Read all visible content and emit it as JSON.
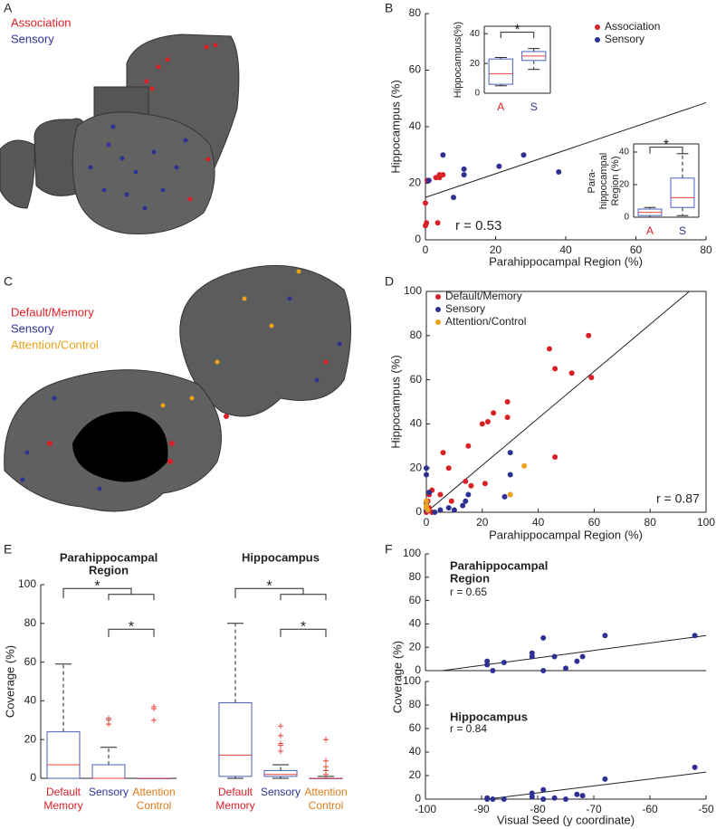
{
  "figure": {
    "panel_labels": [
      "A",
      "B",
      "C",
      "D",
      "E",
      "F"
    ],
    "brain_a": {
      "legend": [
        "Association",
        "Sensory"
      ],
      "colors": [
        "#d92027",
        "#2e3192"
      ]
    },
    "brain_c": {
      "legend": [
        "Default/Memory",
        "Sensory",
        "Attention/Control"
      ],
      "colors": [
        "#d92027",
        "#2e3192",
        "#e9a21c"
      ]
    }
  },
  "chart_data": [
    {
      "type": "scatter",
      "xlabel": "Parahippocampal Region (%)",
      "ylabel": "Hippocampus (%)",
      "xlim": [
        0,
        80
      ],
      "xticks": [
        0,
        20,
        40,
        60,
        80
      ],
      "ylim": [
        0,
        80
      ],
      "yticks": [
        0,
        20,
        40,
        60,
        80
      ],
      "annotation": "r = 0.53",
      "legend": "upper right",
      "fit": {
        "x": [
          0,
          80
        ],
        "y": [
          15,
          48.5
        ]
      },
      "series": [
        {
          "name": "Association",
          "color": "#d92027",
          "x": [
            0,
            0,
            0.3,
            3,
            4,
            5,
            4,
            3.5,
            0.5
          ],
          "y": [
            13,
            5,
            6,
            22,
            23,
            23,
            22,
            6,
            21
          ]
        },
        {
          "name": "Sensory",
          "color": "#2e3192",
          "x": [
            1,
            5,
            8,
            11,
            11,
            21,
            28,
            38
          ],
          "y": [
            21,
            30,
            15,
            25,
            23,
            26,
            30,
            24
          ]
        }
      ]
    },
    {
      "type": "box",
      "ylabel": [
        "Hippocampus(%)"
      ],
      "categories": [
        [
          "A"
        ],
        [
          "S"
        ]
      ],
      "category_colors": [
        "#d92027",
        "#2e3192"
      ],
      "ylim": [
        0,
        45
      ],
      "yticks": [
        0,
        20,
        40
      ],
      "box_color": "#4a5fc1",
      "median_color": "#e8443a",
      "annotations": [
        "*"
      ],
      "boxes": [
        {
          "min": 5,
          "q1": 6,
          "median": 13,
          "q3": 23,
          "max": 24,
          "outliers": []
        },
        {
          "min": 16,
          "q1": 22,
          "median": 25,
          "q3": 28,
          "max": 30,
          "outliers": []
        }
      ]
    },
    {
      "type": "box",
      "ylabel": [
        "Para-",
        "hippocampal",
        "Region (%)"
      ],
      "categories": [
        [
          "A"
        ],
        [
          "S"
        ]
      ],
      "category_colors": [
        "#d92027",
        "#2e3192"
      ],
      "ylim": [
        0,
        45
      ],
      "yticks": [
        0,
        20,
        40
      ],
      "box_color": "#4a5fc1",
      "median_color": "#e8443a",
      "annotations": [
        "*"
      ],
      "boxes": [
        {
          "min": 0,
          "q1": 1,
          "median": 3,
          "q3": 5,
          "max": 6,
          "outliers": []
        },
        {
          "min": 1,
          "q1": 6,
          "median": 12,
          "q3": 24,
          "max": 39,
          "outliers": []
        }
      ]
    },
    {
      "type": "scatter",
      "xlabel": "Parahippocampal Region (%)",
      "ylabel": "Hippocampus (%)",
      "xlim": [
        0,
        100
      ],
      "xticks": [
        0,
        20,
        40,
        60,
        80,
        100
      ],
      "ylim": [
        0,
        100
      ],
      "yticks": [
        0,
        20,
        40,
        60,
        80,
        100
      ],
      "annotation": "r = 0.87",
      "legend": "upper left",
      "fit": {
        "x": [
          0,
          94
        ],
        "y": [
          0,
          100
        ]
      },
      "series": [
        {
          "name": "Default/Memory",
          "color": "#d92027",
          "x": [
            58,
            59,
            44,
            46,
            52,
            46,
            29,
            29,
            24,
            22,
            20,
            15,
            6,
            8,
            5,
            9,
            14,
            16,
            21,
            2,
            1,
            0.5,
            1,
            2,
            0
          ],
          "y": [
            80,
            61,
            74,
            65,
            63,
            25,
            50,
            43,
            45,
            41,
            40,
            30,
            27,
            20,
            8,
            5,
            14,
            12,
            13,
            10,
            8,
            5,
            2,
            0,
            0
          ]
        },
        {
          "name": "Sensory",
          "color": "#2e3192",
          "x": [
            30,
            30,
            28,
            14,
            15,
            13,
            8,
            5,
            0,
            0,
            1,
            0,
            0,
            3,
            10
          ],
          "y": [
            27,
            17,
            7,
            5,
            8,
            3,
            2,
            1,
            20,
            17,
            9,
            4,
            1,
            0,
            1
          ]
        },
        {
          "name": "Attention/Control",
          "color": "#e9a21c",
          "x": [
            35,
            30,
            0,
            0,
            0.5,
            0
          ],
          "y": [
            21,
            8,
            5,
            3,
            1,
            2
          ]
        }
      ]
    },
    {
      "type": "box",
      "title": [
        "Parahippocampal",
        "Region"
      ],
      "ylabel": [
        "Coverage (%)"
      ],
      "categories": [
        [
          "Default",
          "Memory"
        ],
        [
          "Sensory"
        ],
        [
          "Attention",
          "Control"
        ]
      ],
      "category_colors": [
        "#d92027",
        "#2e3192",
        "#e07b1c"
      ],
      "ylim": [
        0,
        100
      ],
      "yticks": [
        0,
        20,
        40,
        60,
        80,
        100
      ],
      "box_color": "#4a5fc1",
      "median_color": "#e8443a",
      "annotations": [
        "*",
        "*"
      ],
      "boxes": [
        {
          "min": 0,
          "q1": 0,
          "median": 7,
          "q3": 24,
          "max": 59,
          "outliers": []
        },
        {
          "min": 0,
          "q1": 0,
          "median": 0,
          "q3": 7,
          "max": 16,
          "outliers": [
            28,
            30,
            31
          ]
        },
        {
          "min": 0,
          "q1": 0,
          "median": 0,
          "q3": 0,
          "max": 0,
          "outliers": [
            30,
            36,
            37
          ]
        }
      ]
    },
    {
      "type": "box",
      "title": [
        "Hippocampus"
      ],
      "categories": [
        [
          "Default",
          "Memory"
        ],
        [
          "Sensory"
        ],
        [
          "Attention",
          "Control"
        ]
      ],
      "category_colors": [
        "#d92027",
        "#2e3192",
        "#e07b1c"
      ],
      "ylim": [
        0,
        100
      ],
      "box_color": "#4a5fc1",
      "median_color": "#e8443a",
      "annotations": [
        "*",
        "*"
      ],
      "boxes": [
        {
          "min": 0,
          "q1": 1,
          "median": 12,
          "q3": 39,
          "max": 80,
          "outliers": []
        },
        {
          "min": 0,
          "q1": 1,
          "median": 2,
          "q3": 4,
          "max": 7,
          "outliers": [
            14,
            17,
            18,
            22,
            27
          ]
        },
        {
          "min": 0,
          "q1": 0,
          "median": 0,
          "q3": 0,
          "max": 1,
          "outliers": [
            2,
            4,
            6,
            9,
            20
          ]
        }
      ]
    },
    {
      "type": "scatter",
      "title": [
        "Parahippocampal",
        "Region"
      ],
      "ylabel": "Coverage (%)",
      "annotation": "r = 0.65",
      "xlim": [
        -100,
        -50
      ],
      "ylim": [
        0,
        100
      ],
      "yticks": [
        0,
        20,
        40,
        60,
        80,
        100
      ],
      "fit": {
        "x": [
          -97,
          -50
        ],
        "y": [
          0,
          30
        ]
      },
      "series": [
        {
          "color": "#2e3192",
          "x": [
            -89,
            -89,
            -88,
            -86,
            -81,
            -81,
            -79,
            -79,
            -77,
            -75,
            -73,
            -72,
            -68,
            -52
          ],
          "y": [
            8,
            5,
            0,
            7,
            15,
            12,
            28,
            0,
            12,
            2,
            8,
            12,
            30,
            30
          ]
        }
      ]
    },
    {
      "type": "scatter",
      "title": [
        "Hippocampus"
      ],
      "xlabel": "Visual Seed (y coordinate)",
      "annotation": "r = 0.84",
      "xlim": [
        -100,
        -50
      ],
      "xticks": [
        -100,
        -90,
        -80,
        -70,
        -60,
        -50
      ],
      "ylim": [
        0,
        100
      ],
      "yticks": [
        0,
        20,
        40,
        60,
        80,
        100
      ],
      "fit": {
        "x": [
          -89,
          -50
        ],
        "y": [
          0,
          23
        ]
      },
      "series": [
        {
          "color": "#2e3192",
          "x": [
            -89,
            -89,
            -88,
            -86,
            -81,
            -81,
            -79,
            -79,
            -77,
            -75,
            -73,
            -72,
            -68,
            -52
          ],
          "y": [
            0,
            1,
            0,
            0,
            5,
            2,
            8,
            0,
            1,
            0,
            4,
            3,
            17,
            27
          ]
        }
      ]
    }
  ]
}
